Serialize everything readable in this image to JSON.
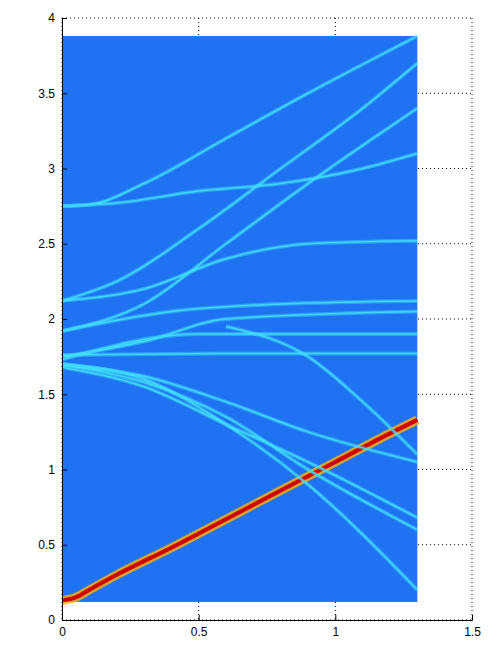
{
  "chart_data": {
    "type": "line",
    "xlim": [
      0,
      1.5
    ],
    "xticks": [
      0,
      0.5,
      1,
      1.5
    ],
    "ylim": [
      0,
      4
    ],
    "yticks": [
      0,
      0.5,
      1,
      1.5,
      2,
      2.5,
      3,
      3.5,
      4
    ],
    "grid": true,
    "image": {
      "x": [
        0,
        1.3
      ],
      "y": [
        0.12,
        3.88
      ],
      "color": "#1f72f2"
    },
    "series": [
      {
        "color": "#d00000",
        "x": [
          0,
          0.05,
          0.1,
          0.2,
          0.4,
          0.6,
          0.8,
          1.0,
          1.2,
          1.3
        ],
        "values": [
          0.13,
          0.15,
          0.2,
          0.3,
          0.48,
          0.67,
          0.86,
          1.05,
          1.24,
          1.33
        ]
      },
      {
        "color": "#3fd8f8",
        "x": [
          0,
          0.1,
          0.3,
          0.6,
          0.9,
          1.3
        ],
        "values": [
          2.75,
          2.76,
          2.9,
          3.2,
          3.5,
          3.88
        ]
      },
      {
        "color": "#3fd8f8",
        "x": [
          0,
          0.2,
          0.5,
          0.8,
          1.1,
          1.3
        ],
        "values": [
          2.75,
          2.77,
          2.85,
          2.9,
          3.0,
          3.1
        ]
      },
      {
        "color": "#3fd8f8",
        "x": [
          0,
          0.2,
          0.5,
          0.8,
          1.1,
          1.3
        ],
        "values": [
          2.12,
          2.25,
          2.6,
          3.0,
          3.4,
          3.7
        ]
      },
      {
        "color": "#3fd8f8",
        "x": [
          0,
          0.3,
          0.6,
          0.9,
          1.3
        ],
        "values": [
          2.12,
          2.2,
          2.4,
          2.5,
          2.52
        ]
      },
      {
        "color": "#3fd8f8",
        "x": [
          0,
          0.3,
          0.6,
          0.9,
          1.3
        ],
        "values": [
          1.92,
          2.1,
          2.5,
          2.9,
          3.4
        ]
      },
      {
        "color": "#3fd8f8",
        "x": [
          0,
          0.4,
          0.8,
          1.3
        ],
        "values": [
          1.92,
          2.05,
          2.1,
          2.12
        ]
      },
      {
        "color": "#3fd8f8",
        "x": [
          0,
          0.3,
          0.6,
          1.3
        ],
        "values": [
          1.75,
          1.85,
          2.0,
          2.05
        ]
      },
      {
        "color": "#3fd8f8",
        "x": [
          0,
          0.6,
          1.3
        ],
        "values": [
          1.76,
          1.77,
          1.77
        ]
      },
      {
        "color": "#3fd8f8",
        "x": [
          0,
          0.5,
          1.3
        ],
        "values": [
          1.73,
          1.9,
          1.9
        ]
      },
      {
        "color": "#3fd8f8",
        "x": [
          0,
          0.3,
          0.6,
          0.9,
          1.3
        ],
        "values": [
          1.7,
          1.6,
          1.3,
          0.9,
          0.2
        ]
      },
      {
        "color": "#3fd8f8",
        "x": [
          0,
          0.3,
          0.6,
          0.9,
          1.3
        ],
        "values": [
          1.7,
          1.58,
          1.35,
          1.0,
          0.6
        ]
      },
      {
        "color": "#3fd8f8",
        "x": [
          0,
          0.3,
          0.6,
          0.9,
          1.3
        ],
        "values": [
          1.68,
          1.55,
          1.3,
          1.05,
          0.68
        ]
      },
      {
        "color": "#3fd8f8",
        "x": [
          0,
          0.3,
          0.6,
          0.9,
          1.3
        ],
        "values": [
          1.7,
          1.62,
          1.45,
          1.25,
          1.05
        ]
      },
      {
        "color": "#3fd8f8",
        "x": [
          0.6,
          0.9,
          1.1,
          1.3
        ],
        "values": [
          1.95,
          1.75,
          1.45,
          1.1
        ]
      }
    ]
  }
}
